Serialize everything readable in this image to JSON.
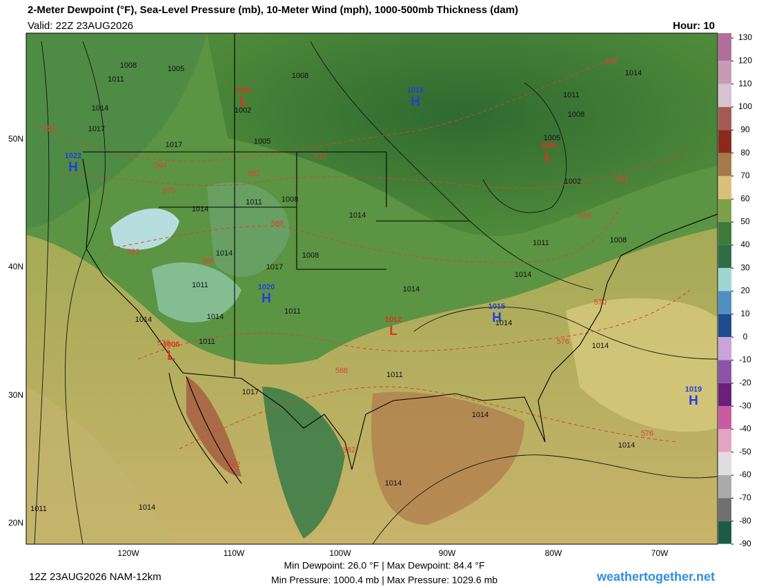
{
  "header": {
    "title": "2-Meter Dewpoint (°F), Sea-Level Pressure (mb), 10-Meter Wind (mph), 1000-500mb Thickness (dam)",
    "valid": "Valid: 22Z 23AUG2026",
    "hour": "Hour: 10"
  },
  "map": {
    "lat_labels": [
      "50N",
      "40N",
      "30N",
      "20N"
    ],
    "lon_labels": [
      "120W",
      "110W",
      "100W",
      "90W",
      "80W",
      "70W"
    ],
    "centers": [
      {
        "letter": "H",
        "value": "1022"
      },
      {
        "letter": "L",
        "value": "1001"
      },
      {
        "letter": "H",
        "value": "1016"
      },
      {
        "letter": "L",
        "value": "1000"
      },
      {
        "letter": "H",
        "value": "1020"
      },
      {
        "letter": "L",
        "value": "1012"
      },
      {
        "letter": "H",
        "value": "1015"
      },
      {
        "letter": "L",
        "value": "1006"
      },
      {
        "letter": "H",
        "value": "1019"
      }
    ],
    "isobar_labels": [
      "1008",
      "1005",
      "1011",
      "1014",
      "1017",
      "1002",
      "1005",
      "1008",
      "1011",
      "1008",
      "1005",
      "1002",
      "1014",
      "1011",
      "1008",
      "1017",
      "1011",
      "1014",
      "1008",
      "1011",
      "1017",
      "1014",
      "1011",
      "1014",
      "1014",
      "1008",
      "1011",
      "1014",
      "1014",
      "1017",
      "1014",
      "1011",
      "1014",
      "1014",
      "1014",
      "1014",
      "1011",
      "1014",
      "1014"
    ],
    "thickness_labels": [
      "558",
      "564",
      "570",
      "582",
      "576",
      "582",
      "588",
      "588",
      "576",
      "558",
      "564",
      "558",
      "570",
      "576",
      "582",
      "588",
      "576",
      "582"
    ]
  },
  "colorbar": {
    "ticks": [
      130,
      120,
      110,
      100,
      90,
      80,
      70,
      60,
      50,
      40,
      30,
      20,
      10,
      0,
      -10,
      -20,
      -30,
      -40,
      -50,
      -60,
      -70,
      -80,
      -90
    ],
    "colors": [
      "#b06f9a",
      "#c89bb4",
      "#d8c2cf",
      "#a35a55",
      "#8a2a1c",
      "#a6794b",
      "#d9c07a",
      "#7fa04a",
      "#3f7a3a",
      "#2f6d44",
      "#9fd6d0",
      "#4f8fc1",
      "#1f4c8a",
      "#c8a4d8",
      "#8a55a8",
      "#6b1f7a",
      "#c85ca0",
      "#e4a4c4",
      "#e0dde0",
      "#aaaaaa",
      "#6f6f6f",
      "#1f5a45"
    ]
  },
  "footer": {
    "run": "12Z 23AUG2026 NAM-12km",
    "dewpoint": "Min Dewpoint: 26.0 °F | Max Dewpoint: 84.4 °F",
    "pressure": "Min Pressure: 1000.4 mb | Max Pressure: 1029.6 mb",
    "site": "weathertogether.net"
  }
}
